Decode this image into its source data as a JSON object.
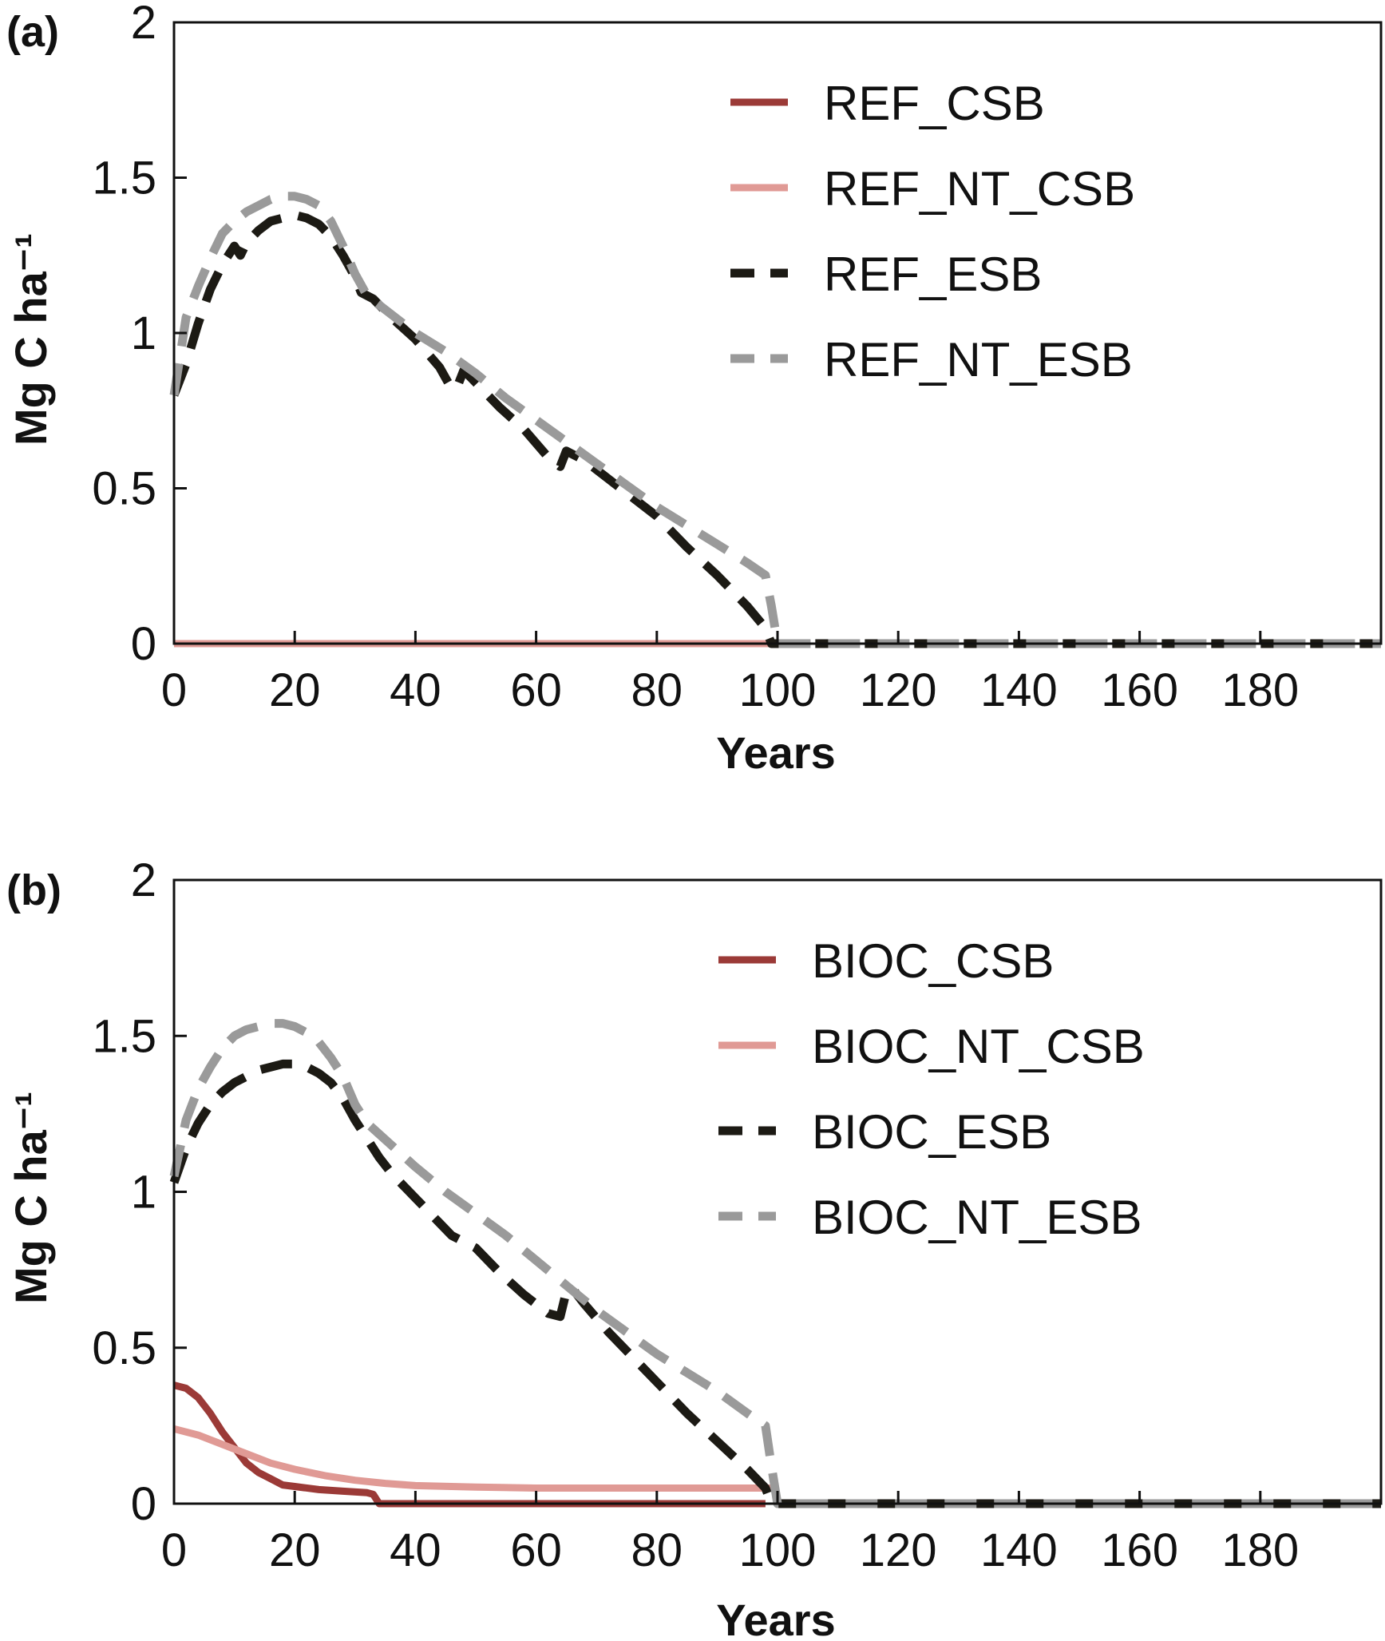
{
  "chart_data": [
    {
      "panel_label": "(a)",
      "type": "line",
      "xlabel": "Years",
      "ylabel": "Mg C ha⁻¹",
      "xlim": [
        0,
        200
      ],
      "ylim": [
        0,
        2
      ],
      "xticks": [
        "0",
        "20",
        "40",
        "60",
        "80",
        "100",
        "120",
        "140",
        "160",
        "180"
      ],
      "yticks": [
        "0",
        "0.5",
        "1",
        "1.5",
        "2"
      ],
      "legend_position": "top-right",
      "series": [
        {
          "name": "REF_CSB",
          "color": "#9b3a37",
          "style": "solid",
          "points": [
            [
              0,
              0
            ],
            [
              20,
              0
            ],
            [
              40,
              0
            ],
            [
              60,
              0
            ],
            [
              80,
              0
            ],
            [
              98,
              0
            ]
          ]
        },
        {
          "name": "REF_NT_CSB",
          "color": "#e09a95",
          "style": "solid",
          "points": [
            [
              0,
              0
            ],
            [
              20,
              0
            ],
            [
              40,
              0
            ],
            [
              60,
              0
            ],
            [
              80,
              0
            ],
            [
              99,
              0
            ]
          ]
        },
        {
          "name": "REF_ESB",
          "color": "#1c1a14",
          "style": "dashed",
          "points": [
            [
              0,
              0.8
            ],
            [
              2,
              0.9
            ],
            [
              4,
              1.03
            ],
            [
              6,
              1.14
            ],
            [
              8,
              1.22
            ],
            [
              10,
              1.28
            ],
            [
              11,
              1.25
            ],
            [
              12,
              1.29
            ],
            [
              14,
              1.33
            ],
            [
              16,
              1.36
            ],
            [
              18,
              1.37
            ],
            [
              20,
              1.38
            ],
            [
              22,
              1.37
            ],
            [
              24,
              1.35
            ],
            [
              26,
              1.31
            ],
            [
              28,
              1.25
            ],
            [
              30,
              1.18
            ],
            [
              31,
              1.13
            ],
            [
              33,
              1.11
            ],
            [
              36,
              1.05
            ],
            [
              40,
              0.98
            ],
            [
              44,
              0.89
            ],
            [
              46,
              0.82
            ],
            [
              47,
              0.83
            ],
            [
              48,
              0.88
            ],
            [
              50,
              0.84
            ],
            [
              54,
              0.76
            ],
            [
              58,
              0.69
            ],
            [
              62,
              0.6
            ],
            [
              64,
              0.57
            ],
            [
              65,
              0.62
            ],
            [
              68,
              0.59
            ],
            [
              72,
              0.53
            ],
            [
              76,
              0.47
            ],
            [
              80,
              0.41
            ],
            [
              85,
              0.31
            ],
            [
              90,
              0.22
            ],
            [
              95,
              0.12
            ],
            [
              98,
              0.05
            ],
            [
              99,
              0.0
            ],
            [
              120,
              0
            ],
            [
              140,
              0
            ],
            [
              160,
              0
            ],
            [
              180,
              0
            ],
            [
              200,
              0
            ]
          ]
        },
        {
          "name": "REF_NT_ESB",
          "color": "#9a9a9a",
          "style": "dashed",
          "points": [
            [
              0,
              0.8
            ],
            [
              2,
              1.05
            ],
            [
              4,
              1.15
            ],
            [
              6,
              1.24
            ],
            [
              8,
              1.32
            ],
            [
              10,
              1.36
            ],
            [
              12,
              1.39
            ],
            [
              14,
              1.41
            ],
            [
              16,
              1.43
            ],
            [
              18,
              1.44
            ],
            [
              20,
              1.44
            ],
            [
              22,
              1.43
            ],
            [
              24,
              1.41
            ],
            [
              26,
              1.36
            ],
            [
              28,
              1.28
            ],
            [
              30,
              1.19
            ],
            [
              32,
              1.12
            ],
            [
              36,
              1.06
            ],
            [
              40,
              1.0
            ],
            [
              45,
              0.94
            ],
            [
              50,
              0.87
            ],
            [
              55,
              0.79
            ],
            [
              60,
              0.72
            ],
            [
              65,
              0.65
            ],
            [
              70,
              0.58
            ],
            [
              75,
              0.51
            ],
            [
              80,
              0.44
            ],
            [
              85,
              0.38
            ],
            [
              90,
              0.32
            ],
            [
              95,
              0.26
            ],
            [
              98,
              0.22
            ],
            [
              99,
              0.12
            ],
            [
              100,
              0.0
            ],
            [
              120,
              0
            ],
            [
              140,
              0
            ],
            [
              160,
              0
            ],
            [
              180,
              0
            ],
            [
              200,
              0
            ]
          ]
        }
      ]
    },
    {
      "panel_label": "(b)",
      "type": "line",
      "xlabel": "Years",
      "ylabel": "Mg C ha⁻¹",
      "xlim": [
        0,
        200
      ],
      "ylim": [
        0,
        2
      ],
      "xticks": [
        "0",
        "20",
        "40",
        "60",
        "80",
        "100",
        "120",
        "140",
        "160",
        "180"
      ],
      "yticks": [
        "0",
        "0.5",
        "1",
        "1.5",
        "2"
      ],
      "legend_position": "top-right",
      "series": [
        {
          "name": "BIOC_CSB",
          "color": "#9b3a37",
          "style": "solid",
          "points": [
            [
              0,
              0.38
            ],
            [
              2,
              0.37
            ],
            [
              4,
              0.34
            ],
            [
              6,
              0.29
            ],
            [
              8,
              0.23
            ],
            [
              10,
              0.18
            ],
            [
              12,
              0.13
            ],
            [
              14,
              0.1
            ],
            [
              16,
              0.08
            ],
            [
              18,
              0.06
            ],
            [
              20,
              0.055
            ],
            [
              24,
              0.045
            ],
            [
              28,
              0.04
            ],
            [
              32,
              0.035
            ],
            [
              33,
              0.03
            ],
            [
              34,
              0.0
            ],
            [
              40,
              0
            ],
            [
              60,
              0
            ],
            [
              80,
              0
            ],
            [
              98,
              0
            ]
          ]
        },
        {
          "name": "BIOC_NT_CSB",
          "color": "#e09a95",
          "style": "solid",
          "points": [
            [
              0,
              0.24
            ],
            [
              4,
              0.22
            ],
            [
              8,
              0.19
            ],
            [
              12,
              0.16
            ],
            [
              16,
              0.13
            ],
            [
              20,
              0.11
            ],
            [
              25,
              0.09
            ],
            [
              30,
              0.075
            ],
            [
              35,
              0.065
            ],
            [
              40,
              0.058
            ],
            [
              50,
              0.053
            ],
            [
              60,
              0.05
            ],
            [
              70,
              0.05
            ],
            [
              80,
              0.05
            ],
            [
              90,
              0.05
            ],
            [
              99,
              0.05
            ]
          ]
        },
        {
          "name": "BIOC_ESB",
          "color": "#1c1a14",
          "style": "dashed",
          "points": [
            [
              0,
              1.03
            ],
            [
              2,
              1.14
            ],
            [
              4,
              1.22
            ],
            [
              6,
              1.28
            ],
            [
              8,
              1.32
            ],
            [
              10,
              1.35
            ],
            [
              12,
              1.37
            ],
            [
              14,
              1.39
            ],
            [
              16,
              1.4
            ],
            [
              18,
              1.41
            ],
            [
              20,
              1.41
            ],
            [
              22,
              1.4
            ],
            [
              24,
              1.38
            ],
            [
              26,
              1.35
            ],
            [
              28,
              1.3
            ],
            [
              30,
              1.23
            ],
            [
              32,
              1.17
            ],
            [
              34,
              1.11
            ],
            [
              36,
              1.06
            ],
            [
              40,
              0.98
            ],
            [
              44,
              0.9
            ],
            [
              46,
              0.86
            ],
            [
              48,
              0.84
            ],
            [
              50,
              0.82
            ],
            [
              54,
              0.74
            ],
            [
              58,
              0.67
            ],
            [
              62,
              0.61
            ],
            [
              64,
              0.6
            ],
            [
              65,
              0.68
            ],
            [
              66,
              0.69
            ],
            [
              68,
              0.64
            ],
            [
              72,
              0.55
            ],
            [
              76,
              0.47
            ],
            [
              80,
              0.39
            ],
            [
              85,
              0.29
            ],
            [
              90,
              0.2
            ],
            [
              95,
              0.11
            ],
            [
              98,
              0.05
            ],
            [
              99,
              0.0
            ],
            [
              120,
              0
            ],
            [
              140,
              0
            ],
            [
              160,
              0
            ],
            [
              180,
              0
            ],
            [
              200,
              0
            ]
          ]
        },
        {
          "name": "BIOC_NT_ESB",
          "color": "#9a9a9a",
          "style": "dashed",
          "points": [
            [
              0,
              1.05
            ],
            [
              2,
              1.23
            ],
            [
              4,
              1.33
            ],
            [
              6,
              1.4
            ],
            [
              8,
              1.46
            ],
            [
              10,
              1.5
            ],
            [
              12,
              1.52
            ],
            [
              14,
              1.53
            ],
            [
              16,
              1.54
            ],
            [
              18,
              1.54
            ],
            [
              20,
              1.53
            ],
            [
              22,
              1.51
            ],
            [
              24,
              1.48
            ],
            [
              26,
              1.43
            ],
            [
              28,
              1.37
            ],
            [
              30,
              1.28
            ],
            [
              32,
              1.22
            ],
            [
              36,
              1.15
            ],
            [
              40,
              1.08
            ],
            [
              45,
              1.0
            ],
            [
              50,
              0.93
            ],
            [
              55,
              0.86
            ],
            [
              60,
              0.78
            ],
            [
              65,
              0.7
            ],
            [
              70,
              0.62
            ],
            [
              75,
              0.55
            ],
            [
              80,
              0.48
            ],
            [
              85,
              0.42
            ],
            [
              90,
              0.36
            ],
            [
              95,
              0.29
            ],
            [
              98,
              0.25
            ],
            [
              99,
              0.12
            ],
            [
              100,
              0.0
            ],
            [
              120,
              0
            ],
            [
              140,
              0
            ],
            [
              160,
              0
            ],
            [
              180,
              0
            ],
            [
              200,
              0
            ]
          ]
        }
      ]
    }
  ]
}
